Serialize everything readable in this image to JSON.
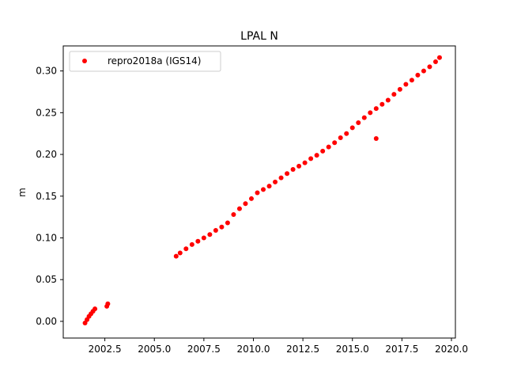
{
  "chart_data": {
    "type": "scatter",
    "title": "LPAL N",
    "xlabel": "",
    "ylabel": "m",
    "xlim": [
      2000.4,
      2020.2
    ],
    "ylim": [
      -0.02,
      0.33
    ],
    "xticks": [
      2002.5,
      2005.0,
      2007.5,
      2010.0,
      2012.5,
      2015.0,
      2017.5,
      2020.0
    ],
    "xtick_labels": [
      "2002.5",
      "2005.0",
      "2007.5",
      "2010.0",
      "2012.5",
      "2015.0",
      "2017.5",
      "2020.0"
    ],
    "yticks": [
      0.0,
      0.05,
      0.1,
      0.15,
      0.2,
      0.25,
      0.3
    ],
    "ytick_labels": [
      "0.00",
      "0.05",
      "0.10",
      "0.15",
      "0.20",
      "0.25",
      "0.30"
    ],
    "grid": false,
    "legend": {
      "placement": "upper-left"
    },
    "series": [
      {
        "name": "repro2018a (IGS14)",
        "color": "#ff0000",
        "marker": "circle",
        "x": [
          2001.5,
          2001.6,
          2001.7,
          2001.8,
          2001.9,
          2002.0,
          2002.6,
          2002.65,
          2006.1,
          2006.3,
          2006.6,
          2006.9,
          2007.2,
          2007.5,
          2007.8,
          2008.1,
          2008.4,
          2008.7,
          2009.0,
          2009.3,
          2009.6,
          2009.9,
          2010.2,
          2010.5,
          2010.8,
          2011.1,
          2011.4,
          2011.7,
          2012.0,
          2012.3,
          2012.6,
          2012.9,
          2013.2,
          2013.5,
          2013.8,
          2014.1,
          2014.4,
          2014.7,
          2015.0,
          2015.3,
          2015.6,
          2015.9,
          2016.2,
          2016.5,
          2016.8,
          2017.1,
          2017.4,
          2017.7,
          2018.0,
          2018.3,
          2018.6,
          2018.9,
          2019.2,
          2019.4,
          2016.2
        ],
        "y": [
          -0.002,
          0.002,
          0.006,
          0.009,
          0.012,
          0.015,
          0.018,
          0.021,
          0.078,
          0.082,
          0.087,
          0.092,
          0.096,
          0.1,
          0.104,
          0.109,
          0.113,
          0.118,
          0.128,
          0.135,
          0.141,
          0.147,
          0.154,
          0.158,
          0.162,
          0.167,
          0.172,
          0.177,
          0.182,
          0.186,
          0.19,
          0.195,
          0.199,
          0.204,
          0.209,
          0.214,
          0.22,
          0.225,
          0.232,
          0.238,
          0.244,
          0.25,
          0.255,
          0.26,
          0.265,
          0.272,
          0.278,
          0.284,
          0.289,
          0.295,
          0.3,
          0.305,
          0.311,
          0.316,
          0.219
        ]
      }
    ]
  }
}
